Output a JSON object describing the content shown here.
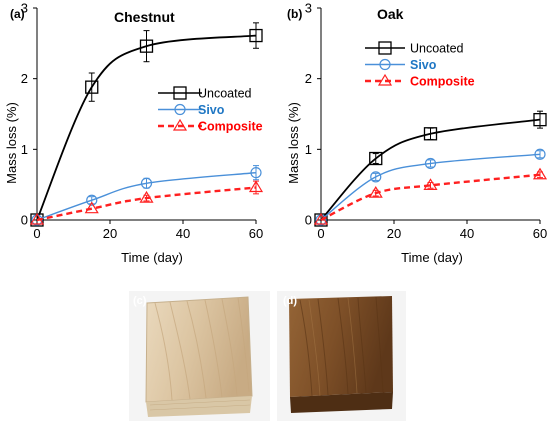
{
  "chart_data": [
    {
      "type": "line",
      "panel_label": "(a)",
      "title": "Chestnut",
      "xlabel": "Time (day)",
      "ylabel": "Mass loss (%)",
      "xlim": [
        0,
        60
      ],
      "ylim": [
        0,
        3
      ],
      "xticks": [
        "0",
        "20",
        "40",
        "60"
      ],
      "yticks": [
        "0",
        "1",
        "2",
        "3"
      ],
      "legend_position": "right-middle",
      "grid": false,
      "series": [
        {
          "name": "Uncoated",
          "marker": "square",
          "line": "solid",
          "color": "#000000",
          "legend_color": "#000000",
          "x": [
            0,
            15,
            30,
            60
          ],
          "y": [
            0,
            1.88,
            2.46,
            2.61
          ],
          "err": [
            0.02,
            0.2,
            0.22,
            0.18
          ]
        },
        {
          "name": "Sivo",
          "marker": "circle",
          "line": "solid",
          "color": "#4a90d9",
          "legend_color": "#1f77c4",
          "x": [
            0,
            15,
            30,
            60
          ],
          "y": [
            0,
            0.28,
            0.52,
            0.67
          ],
          "err": [
            0.02,
            0.05,
            0.07,
            0.1
          ]
        },
        {
          "name": "Composite",
          "marker": "triangle",
          "line": "dashed",
          "color": "#ff2020",
          "legend_color": "#ff0000",
          "x": [
            0,
            15,
            30,
            60
          ],
          "y": [
            0,
            0.16,
            0.31,
            0.46
          ],
          "err": [
            0.02,
            0.03,
            0.04,
            0.09
          ]
        }
      ]
    },
    {
      "type": "line",
      "panel_label": "(b)",
      "title": "Oak",
      "xlabel": "Time (day)",
      "ylabel": "Mass loss (%)",
      "xlim": [
        0,
        60
      ],
      "ylim": [
        0,
        3
      ],
      "xticks": [
        "0",
        "20",
        "40",
        "60"
      ],
      "yticks": [
        "0",
        "1",
        "2",
        "3"
      ],
      "legend_position": "right-top",
      "grid": false,
      "series": [
        {
          "name": "Uncoated",
          "marker": "square",
          "line": "solid",
          "color": "#000000",
          "legend_color": "#000000",
          "x": [
            0,
            15,
            30,
            60
          ],
          "y": [
            0,
            0.87,
            1.22,
            1.42
          ],
          "err": [
            0.02,
            0.07,
            0.08,
            0.12
          ]
        },
        {
          "name": "Sivo",
          "marker": "circle",
          "line": "solid",
          "color": "#4a90d9",
          "legend_color": "#1f77c4",
          "x": [
            0,
            15,
            30,
            60
          ],
          "y": [
            0,
            0.61,
            0.8,
            0.93
          ],
          "err": [
            0.02,
            0.05,
            0.05,
            0.05
          ]
        },
        {
          "name": "Composite",
          "marker": "triangle",
          "line": "dashed",
          "color": "#ff2020",
          "legend_color": "#ff0000",
          "x": [
            0,
            15,
            30,
            60
          ],
          "y": [
            0,
            0.38,
            0.49,
            0.64
          ],
          "err": [
            0.02,
            0.04,
            0.04,
            0.04
          ]
        }
      ]
    }
  ],
  "photos": [
    {
      "label": "(c)",
      "name": "chestnut-sample-photo",
      "colors": [
        "#e8d6b8",
        "#d9c29e",
        "#c9ad85"
      ]
    },
    {
      "label": "(d)",
      "name": "oak-sample-photo",
      "colors": [
        "#8a5a2e",
        "#7a4c24",
        "#5e3718"
      ]
    }
  ]
}
